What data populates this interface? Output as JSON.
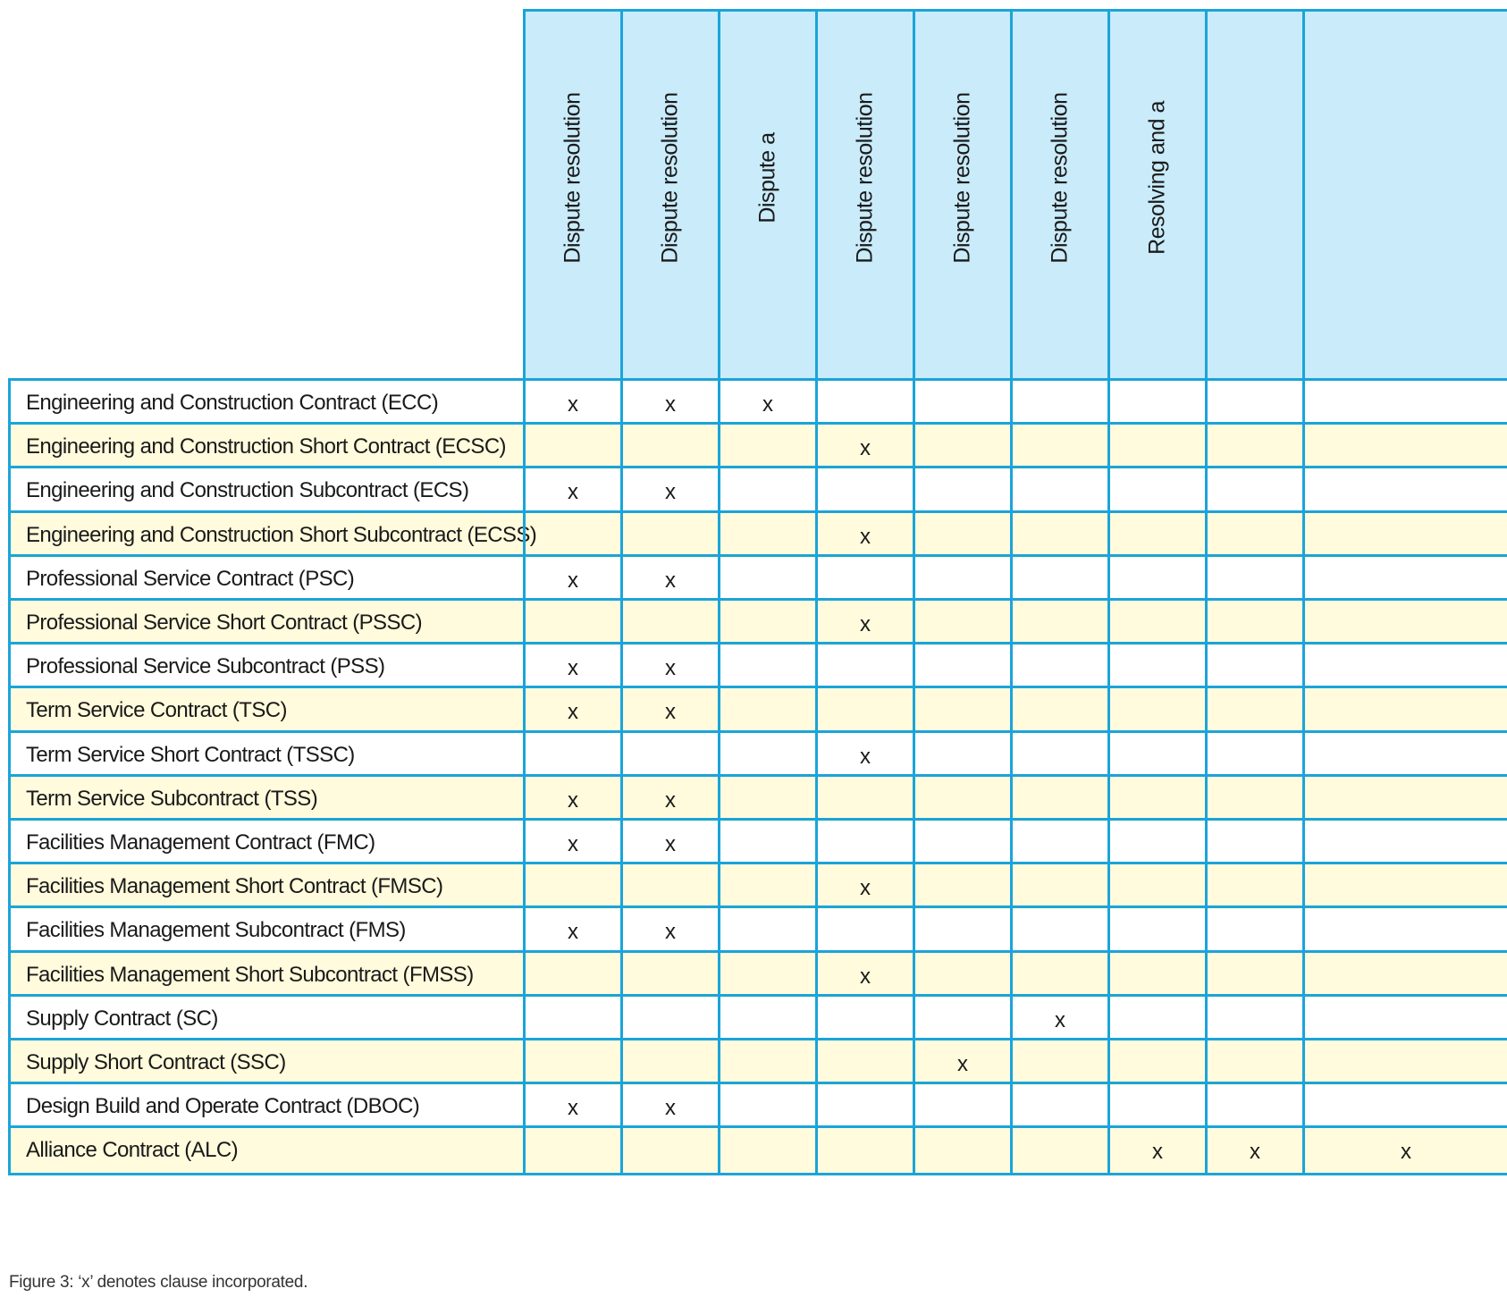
{
  "columns": [
    "Dispute resolution",
    "Dispute resolution",
    "Dispute a",
    "Dispute resolution",
    "Dispute resolution",
    "Dispute resolution",
    "Resolving and a",
    "",
    ""
  ],
  "rows": [
    {
      "label": "Engineering and Construction Contract (ECC)",
      "marks": [
        "x",
        "x",
        "x",
        "",
        "",
        "",
        "",
        "",
        ""
      ]
    },
    {
      "label": "Engineering and Construction Short Contract (ECSC)",
      "marks": [
        "",
        "",
        "",
        "x",
        "",
        "",
        "",
        "",
        ""
      ]
    },
    {
      "label": "Engineering and Construction Subcontract (ECS)",
      "marks": [
        "x",
        "x",
        "",
        "",
        "",
        "",
        "",
        "",
        ""
      ]
    },
    {
      "label": "Engineering and Construction Short Subcontract (ECSS)",
      "marks": [
        "",
        "",
        "",
        "x",
        "",
        "",
        "",
        "",
        ""
      ]
    },
    {
      "label": "Professional Service Contract (PSC)",
      "marks": [
        "x",
        "x",
        "",
        "",
        "",
        "",
        "",
        "",
        ""
      ]
    },
    {
      "label": "Professional Service Short Contract (PSSC)",
      "marks": [
        "",
        "",
        "",
        "x",
        "",
        "",
        "",
        "",
        ""
      ]
    },
    {
      "label": "Professional Service Subcontract (PSS)",
      "marks": [
        "x",
        "x",
        "",
        "",
        "",
        "",
        "",
        "",
        ""
      ]
    },
    {
      "label": "Term Service Contract (TSC)",
      "marks": [
        "x",
        "x",
        "",
        "",
        "",
        "",
        "",
        "",
        ""
      ]
    },
    {
      "label": "Term Service Short Contract (TSSC)",
      "marks": [
        "",
        "",
        "",
        "x",
        "",
        "",
        "",
        "",
        ""
      ]
    },
    {
      "label": "Term Service Subcontract (TSS)",
      "marks": [
        "x",
        "x",
        "",
        "",
        "",
        "",
        "",
        "",
        ""
      ]
    },
    {
      "label": "Facilities Management Contract (FMC)",
      "marks": [
        "x",
        "x",
        "",
        "",
        "",
        "",
        "",
        "",
        ""
      ]
    },
    {
      "label": "Facilities Management Short Contract (FMSC)",
      "marks": [
        "",
        "",
        "",
        "x",
        "",
        "",
        "",
        "",
        ""
      ]
    },
    {
      "label": "Facilities Management Subcontract (FMS)",
      "marks": [
        "x",
        "x",
        "",
        "",
        "",
        "",
        "",
        "",
        ""
      ]
    },
    {
      "label": "Facilities Management Short Subcontract (FMSS)",
      "marks": [
        "",
        "",
        "",
        "x",
        "",
        "",
        "",
        "",
        ""
      ]
    },
    {
      "label": "Supply Contract (SC)",
      "marks": [
        "",
        "",
        "",
        "",
        "",
        "x",
        "",
        "",
        ""
      ]
    },
    {
      "label": "Supply Short Contract (SSC)",
      "marks": [
        "",
        "",
        "",
        "",
        "x",
        "",
        "",
        "",
        ""
      ]
    },
    {
      "label": "Design Build and Operate Contract (DBOC)",
      "marks": [
        "x",
        "x",
        "",
        "",
        "",
        "",
        "",
        "",
        ""
      ]
    },
    {
      "label": "Alliance Contract (ALC)",
      "marks": [
        "",
        "",
        "",
        "",
        "",
        "",
        "x",
        "x",
        "x"
      ]
    }
  ],
  "caption": "Figure 3: ‘x’ denotes clause incorporated.",
  "colors": {
    "border": "#1ba4d9",
    "header_bg": "#c9ebfa",
    "shaded_row_bg": "#fffbdc"
  }
}
